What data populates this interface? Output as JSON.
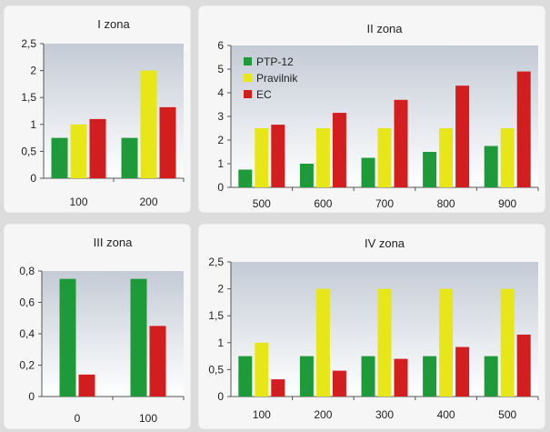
{
  "colors": {
    "PTP-12": "#1f9a3a",
    "Pravilnik": "#e6e619",
    "EC": "#d21e1e",
    "plot_bg_top": "#c4cbd6",
    "plot_bg_bottom": "#ffffff"
  },
  "legend": {
    "items": [
      "PTP-12",
      "Pravilnik",
      "EC"
    ],
    "placement": "top-left of II zona panel"
  },
  "chart_data": [
    {
      "type": "bar",
      "title": "I zona",
      "categories": [
        "100",
        "200"
      ],
      "series": [
        {
          "name": "PTP-12",
          "values": [
            0.75,
            0.75
          ]
        },
        {
          "name": "Pravilnik",
          "values": [
            1.0,
            2.0
          ]
        },
        {
          "name": "EC",
          "values": [
            1.1,
            1.32
          ]
        }
      ],
      "ylim": [
        0,
        2.5
      ],
      "yticks": [
        "0",
        "0,5",
        "1",
        "1,5",
        "2",
        "2,5"
      ],
      "grid": false
    },
    {
      "type": "bar",
      "title": "II zona",
      "categories": [
        "500",
        "600",
        "700",
        "800",
        "900"
      ],
      "series": [
        {
          "name": "PTP-12",
          "values": [
            0.75,
            1.0,
            1.25,
            1.5,
            1.75
          ]
        },
        {
          "name": "Pravilnik",
          "values": [
            2.5,
            2.5,
            2.5,
            2.5,
            2.5
          ]
        },
        {
          "name": "EC",
          "values": [
            2.65,
            3.15,
            3.7,
            4.3,
            4.9
          ]
        }
      ],
      "ylim": [
        0,
        6
      ],
      "yticks": [
        "0",
        "1",
        "2",
        "3",
        "4",
        "5",
        "6"
      ],
      "grid": false
    },
    {
      "type": "bar",
      "title": "III zona",
      "categories": [
        "0",
        "100"
      ],
      "series": [
        {
          "name": "PTP-12",
          "values": [
            0.75,
            0.75
          ]
        },
        {
          "name": "EC",
          "values": [
            0.14,
            0.45
          ]
        }
      ],
      "ylim": [
        0,
        0.8
      ],
      "yticks": [
        "0",
        "0,2",
        "0,4",
        "0,6",
        "0,8"
      ],
      "grid": false
    },
    {
      "type": "bar",
      "title": "IV zona",
      "categories": [
        "100",
        "200",
        "300",
        "400",
        "500"
      ],
      "series": [
        {
          "name": "PTP-12",
          "values": [
            0.75,
            0.75,
            0.75,
            0.75,
            0.75
          ]
        },
        {
          "name": "Pravilnik",
          "values": [
            1.0,
            2.0,
            2.0,
            2.0,
            2.0
          ]
        },
        {
          "name": "EC",
          "values": [
            0.32,
            0.48,
            0.7,
            0.92,
            1.15
          ]
        }
      ],
      "ylim": [
        0,
        2.5
      ],
      "yticks": [
        "0",
        "0,5",
        "1",
        "1,5",
        "2",
        "2,5"
      ],
      "grid": false
    }
  ]
}
